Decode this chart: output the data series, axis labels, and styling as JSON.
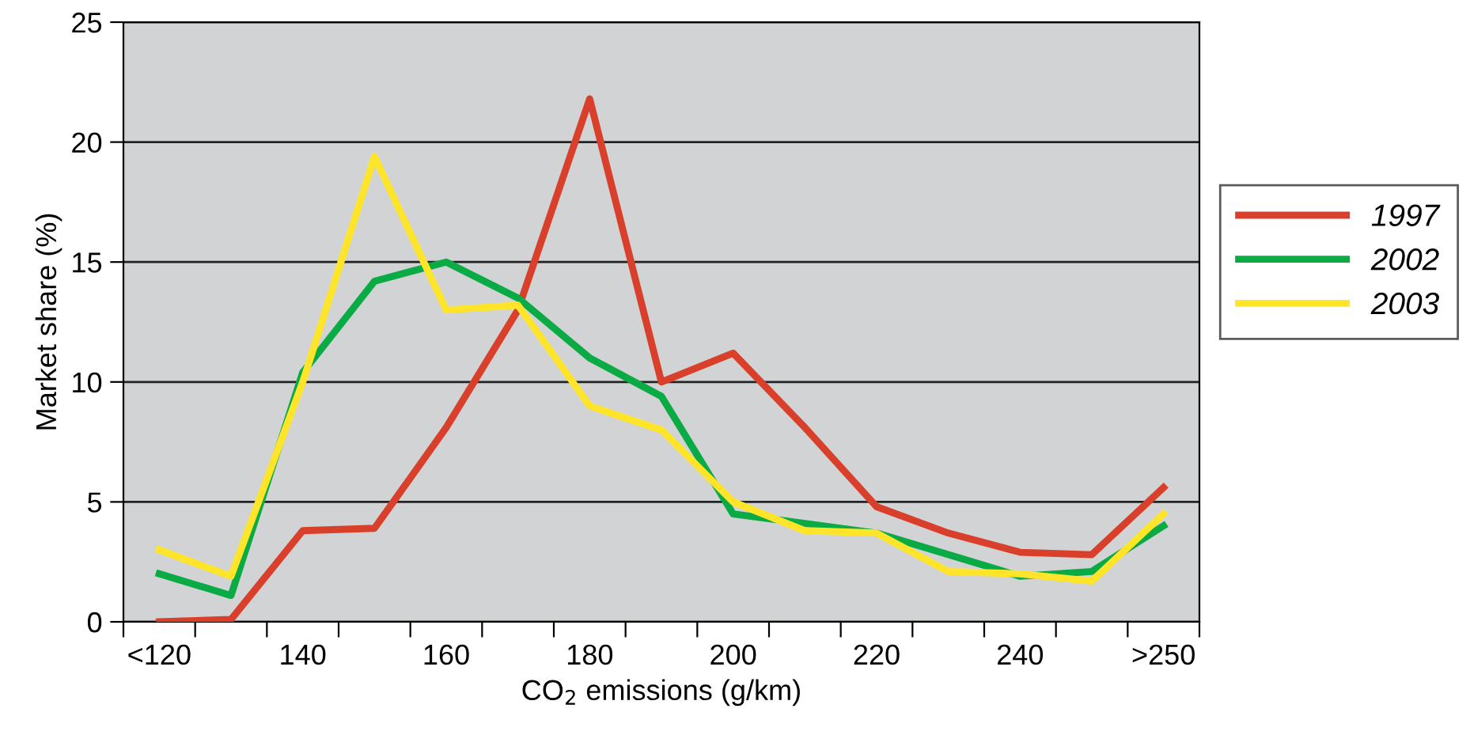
{
  "chart_data": {
    "type": "line",
    "xlabel": "CO$_{2}$ emissions (g/km)",
    "ylabel": "Market share (%)",
    "categories": [
      "<120",
      null,
      "140",
      null,
      "160",
      null,
      "180",
      null,
      "200",
      null,
      "220",
      null,
      "240",
      null,
      ">250"
    ],
    "series": [
      {
        "name": "1997",
        "color": "#d9402b",
        "values": [
          0,
          0.1,
          3.8,
          3.9,
          8.1,
          13,
          21.8,
          10,
          11.2,
          8.1,
          4.8,
          3.7,
          2.9,
          2.8,
          5.6
        ]
      },
      {
        "name": "2002",
        "color": "#0aab45",
        "values": [
          2,
          1.1,
          10.4,
          14.2,
          15,
          13.5,
          11,
          9.4,
          4.5,
          4.1,
          3.7,
          2.8,
          1.9,
          2.1,
          4.0
        ]
      },
      {
        "name": "2003",
        "color": "#ffe52a",
        "values": [
          3,
          1.9,
          10,
          19.4,
          13,
          13.2,
          9,
          8,
          5,
          3.8,
          3.7,
          2.1,
          2,
          1.7,
          4.5
        ]
      }
    ],
    "ylim": [
      0,
      25
    ],
    "yticks": [
      0,
      5,
      10,
      15,
      20,
      25
    ],
    "grid": "y",
    "legend": "right",
    "line_style": "solid",
    "marker": "none"
  }
}
